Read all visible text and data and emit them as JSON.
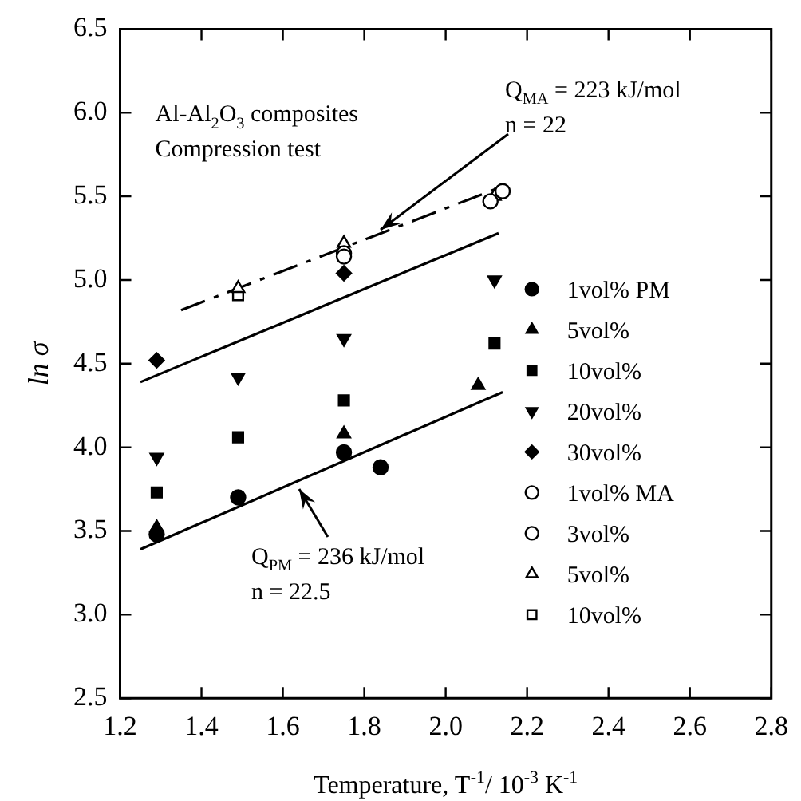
{
  "chart_data": {
    "type": "scatter",
    "xlabel": "Temperature, T$^{-1}$/ 10$^{-3}$ K$^{-1}$",
    "ylabel": "ln σ",
    "xlim": [
      1.2,
      2.8
    ],
    "xticks": [
      1.2,
      1.4,
      1.6,
      1.8,
      {
        "value": 2,
        "label": "2.0"
      },
      2.2,
      2.4,
      2.6,
      2.8
    ],
    "ylim": [
      2.5,
      6.5
    ],
    "yticks": [
      2.5,
      {
        "value": 3,
        "label": "3.0"
      },
      3.5,
      {
        "value": 4,
        "label": "4.0"
      },
      4.5,
      {
        "value": 5,
        "label": "5.0"
      },
      5.5,
      {
        "value": 6,
        "label": "6.0"
      },
      6.5
    ],
    "grid": false,
    "legend": "right",
    "series": [
      {
        "name": "1vol% PM",
        "color": "#000000",
        "marker": "circle",
        "x": [
          1.29,
          1.49,
          1.75,
          1.84
        ],
        "values": [
          3.48,
          3.7,
          3.97,
          3.88
        ]
      },
      {
        "name": "5vol%",
        "color": "#000000",
        "marker": "triangle",
        "x": [
          1.29,
          1.75,
          2.08
        ],
        "values": [
          3.52,
          4.08,
          4.37
        ]
      },
      {
        "name": "10vol%",
        "color": "#000000",
        "marker": "square",
        "x": [
          1.29,
          1.49,
          1.75,
          2.12
        ],
        "values": [
          3.73,
          4.06,
          4.28,
          4.62
        ]
      },
      {
        "name": "20vol%",
        "color": "#000000",
        "marker": "triangle-down",
        "x": [
          1.29,
          1.49,
          1.75,
          2.12
        ],
        "values": [
          3.94,
          4.42,
          4.65,
          5.0
        ]
      },
      {
        "name": "30vol%",
        "color": "#000000",
        "marker": "diamond",
        "x": [
          1.29,
          1.75
        ],
        "values": [
          4.52,
          5.04
        ]
      },
      {
        "name": "1vol% MA",
        "color": "#000000",
        "marker": "circle-open",
        "x": [
          1.75,
          2.11
        ],
        "values": [
          5.14,
          5.47
        ]
      },
      {
        "name": "3vol%",
        "color": "#000000",
        "marker": "circle-open",
        "x": [
          1.75,
          2.14
        ],
        "values": [
          5.16,
          5.53
        ]
      },
      {
        "name": "5vol%",
        "color": "#000000",
        "marker": "triangle-open",
        "x": [
          1.49,
          1.75,
          2.12
        ],
        "values": [
          4.95,
          5.22,
          5.5
        ]
      },
      {
        "name": "10vol%",
        "color": "#000000",
        "marker": "square-open",
        "x": [
          1.49
        ],
        "values": [
          4.91
        ]
      },
      {
        "type": "line",
        "color": "#000000",
        "line_style": "solid",
        "x": [
          1.25,
          2.13
        ],
        "values": [
          4.39,
          5.28
        ]
      },
      {
        "type": "line",
        "color": "#000000",
        "line_style": "dashed",
        "x": [
          1.35,
          2.13
        ],
        "values": [
          4.82,
          5.55
        ]
      },
      {
        "type": "line",
        "color": "#000000",
        "line_style": "solid",
        "x": [
          1.25,
          2.14
        ],
        "values": [
          3.39,
          4.33
        ]
      }
    ],
    "annotations": [
      "Al-Al$_{2}$O$_{3}$ composites",
      "Compression test",
      {
        "text": "Q$_{MA}$ = 223 kJ/mol\nn = 22",
        "x": 1.84,
        "y": 5.3
      },
      {
        "text": "Q$_{PM}$ = 236 kJ/mol\nn = 22.5",
        "x": 1.64,
        "y": 3.75
      }
    ]
  }
}
